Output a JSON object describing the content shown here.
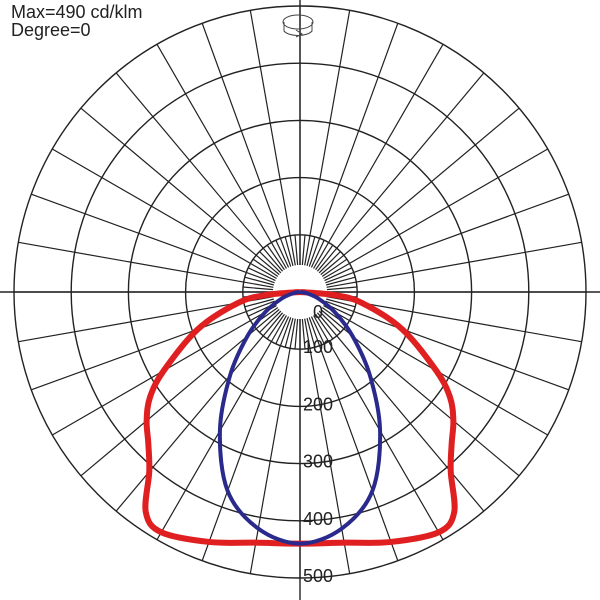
{
  "header": {
    "max_label": "Max=490 cd/klm",
    "degree_label": "Degree=0"
  },
  "chart_data": {
    "type": "polar",
    "title": "",
    "radial_unit": "cd/klm",
    "radial_ticks": [
      0,
      100,
      200,
      300,
      400,
      500
    ],
    "rlim": [
      0,
      500
    ],
    "angle_step_deg": 10,
    "grid": true,
    "colors": {
      "grid": "#222222",
      "red": "#e02020",
      "blue": "#2a2a8c"
    },
    "series": [
      {
        "color": "#e02020",
        "angles": [
          0,
          10,
          20,
          30,
          35,
          40,
          45,
          50,
          55,
          60,
          70,
          80,
          85,
          90
        ],
        "values": [
          440,
          445,
          465,
          485,
          470,
          410,
          375,
          350,
          320,
          275,
          190,
          110,
          60,
          0
        ]
      },
      {
        "color": "#2a2a8c",
        "angles": [
          0,
          10,
          20,
          30,
          40,
          50,
          60,
          70,
          80,
          90
        ],
        "values": [
          440,
          420,
          370,
          280,
          190,
          120,
          70,
          35,
          12,
          0
        ]
      }
    ]
  },
  "icons": {
    "rotate": "rotate-icon"
  }
}
